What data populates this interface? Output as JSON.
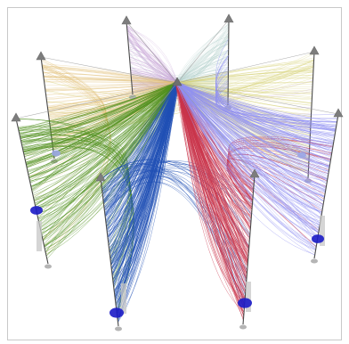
{
  "figure": {
    "title": "",
    "background": "#ffffff",
    "frame_color": "#c9c9c9",
    "axis_color": "#4a4a4a",
    "apex_marker": "triangle",
    "base_marker": "disc",
    "axes": [
      {
        "name": "axis-1",
        "line_color": "#b7d3cf",
        "lines": 90,
        "front": false
      },
      {
        "name": "axis-2",
        "line_color": "#c9a6d8",
        "lines": 90,
        "front": false
      },
      {
        "name": "axis-3",
        "line_color": "#d8d37a",
        "lines": 110,
        "front": false
      },
      {
        "name": "axis-4",
        "line_color": "#e1c078",
        "lines": 110,
        "front": false
      },
      {
        "name": "axis-5",
        "line_color": "#4f8f1d",
        "lines": 150,
        "front": true
      },
      {
        "name": "axis-6",
        "line_color": "#1f4fb4",
        "lines": 170,
        "front": true
      },
      {
        "name": "axis-7",
        "line_color": "#c9344b",
        "lines": 160,
        "front": true
      },
      {
        "name": "axis-8",
        "line_color": "#8f8ff2",
        "lines": 150,
        "front": true
      }
    ],
    "accent_marker_color": "#1b1bc7",
    "accent_marker_color_light": "#9aa6e6"
  }
}
